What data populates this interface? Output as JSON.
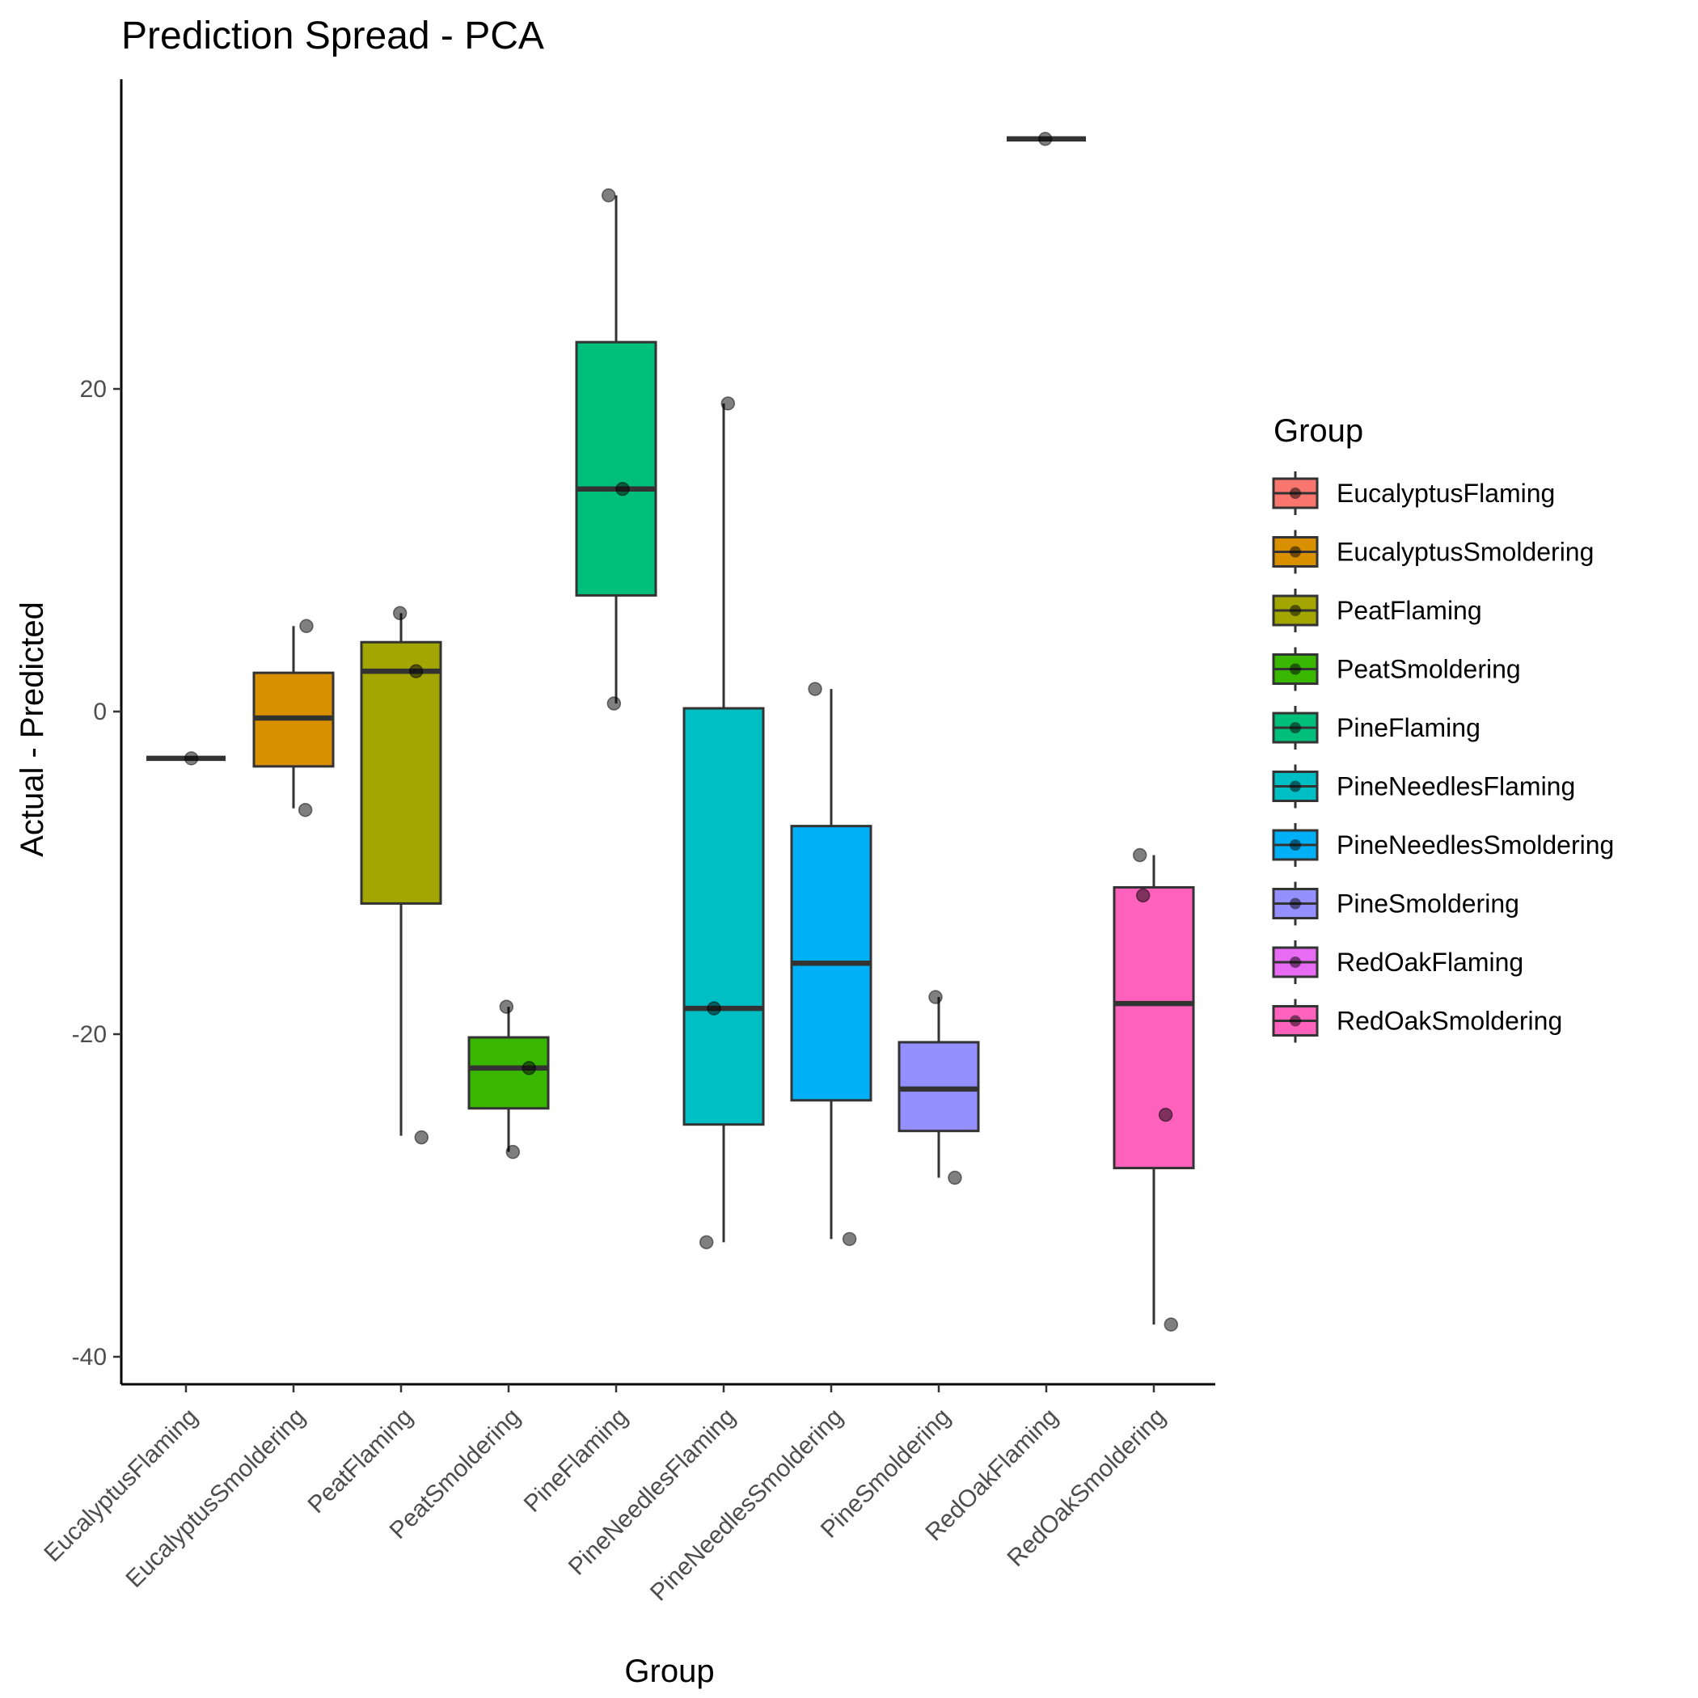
{
  "chart_data": {
    "type": "box",
    "title": "Prediction Spread - PCA",
    "xlabel": "Group",
    "ylabel": "Actual - Predicted",
    "ylim": [
      -41.5,
      39
    ],
    "y_ticks": [
      20,
      0,
      -20,
      -40
    ],
    "grid": false,
    "legend": {
      "title": "Group",
      "position": "right"
    },
    "categories": [
      "EucalyptusFlaming",
      "EucalyptusSmoldering",
      "PeatFlaming",
      "PeatSmoldering",
      "PineFlaming",
      "PineNeedlesFlaming",
      "PineNeedlesSmoldering",
      "PineSmoldering",
      "RedOakFlaming",
      "RedOakSmoldering"
    ],
    "colors": [
      "#F8766D",
      "#D89000",
      "#A3A500",
      "#39B600",
      "#00BF7D",
      "#00BFC4",
      "#00B0F6",
      "#9590FF",
      "#E76BF3",
      "#FF62BC"
    ],
    "boxes": [
      {
        "group": "EucalyptusFlaming",
        "q1": -2.9,
        "median": -2.9,
        "q3": -2.9,
        "whisker_low": -2.9,
        "whisker_high": -2.9
      },
      {
        "group": "EucalyptusSmoldering",
        "q1": -3.4,
        "median": -0.4,
        "q3": 2.4,
        "whisker_low": -6.0,
        "whisker_high": 5.3
      },
      {
        "group": "PeatFlaming",
        "q1": -11.9,
        "median": 2.5,
        "q3": 4.3,
        "whisker_low": -26.3,
        "whisker_high": 6.1
      },
      {
        "group": "PeatSmoldering",
        "q1": -24.6,
        "median": -22.1,
        "q3": -20.2,
        "whisker_low": -27.3,
        "whisker_high": -18.3
      },
      {
        "group": "PineFlaming",
        "q1": 7.2,
        "median": 13.8,
        "q3": 22.9,
        "whisker_low": 0.5,
        "whisker_high": 32.0
      },
      {
        "group": "PineNeedlesFlaming",
        "q1": -25.6,
        "median": -18.4,
        "q3": 0.2,
        "whisker_low": -32.9,
        "whisker_high": 19.1
      },
      {
        "group": "PineNeedlesSmoldering",
        "q1": -24.1,
        "median": -15.6,
        "q3": -7.1,
        "whisker_low": -32.7,
        "whisker_high": 1.4
      },
      {
        "group": "PineSmoldering",
        "q1": -26.0,
        "median": -23.4,
        "q3": -20.5,
        "whisker_low": -28.9,
        "whisker_high": -17.7
      },
      {
        "group": "RedOakFlaming",
        "q1": 35.5,
        "median": 35.5,
        "q3": 35.5,
        "whisker_low": 35.5,
        "whisker_high": 35.5
      },
      {
        "group": "RedOakSmoldering",
        "q1": -28.3,
        "median": -18.1,
        "q3": -10.9,
        "whisker_low": -38.0,
        "whisker_high": -8.9
      }
    ],
    "points": [
      {
        "group": "EucalyptusFlaming",
        "dx": 0.05,
        "y": -2.9
      },
      {
        "group": "EucalyptusSmoldering",
        "dx": 0.12,
        "y": 5.3
      },
      {
        "group": "EucalyptusSmoldering",
        "dx": 0.11,
        "y": -6.1
      },
      {
        "group": "PeatFlaming",
        "dx": -0.01,
        "y": 6.1
      },
      {
        "group": "PeatFlaming",
        "dx": 0.14,
        "y": 2.5
      },
      {
        "group": "PeatFlaming",
        "dx": 0.19,
        "y": -26.4
      },
      {
        "group": "PeatSmoldering",
        "dx": -0.02,
        "y": -18.3
      },
      {
        "group": "PeatSmoldering",
        "dx": 0.19,
        "y": -22.1
      },
      {
        "group": "PeatSmoldering",
        "dx": 0.04,
        "y": -27.3
      },
      {
        "group": "PineFlaming",
        "dx": -0.07,
        "y": 32.0
      },
      {
        "group": "PineFlaming",
        "dx": 0.06,
        "y": 13.8
      },
      {
        "group": "PineFlaming",
        "dx": -0.02,
        "y": 0.5
      },
      {
        "group": "PineNeedlesFlaming",
        "dx": 0.04,
        "y": 19.1
      },
      {
        "group": "PineNeedlesFlaming",
        "dx": -0.09,
        "y": -18.4
      },
      {
        "group": "PineNeedlesFlaming",
        "dx": -0.16,
        "y": -32.9
      },
      {
        "group": "PineNeedlesSmoldering",
        "dx": -0.15,
        "y": 1.4
      },
      {
        "group": "PineNeedlesSmoldering",
        "dx": 0.17,
        "y": -32.7
      },
      {
        "group": "PineSmoldering",
        "dx": -0.03,
        "y": -17.7
      },
      {
        "group": "PineSmoldering",
        "dx": 0.15,
        "y": -28.9
      },
      {
        "group": "RedOakFlaming",
        "dx": -0.01,
        "y": 35.5
      },
      {
        "group": "RedOakSmoldering",
        "dx": -0.13,
        "y": -8.9
      },
      {
        "group": "RedOakSmoldering",
        "dx": -0.1,
        "y": -11.4
      },
      {
        "group": "RedOakSmoldering",
        "dx": 0.11,
        "y": -25.0
      },
      {
        "group": "RedOakSmoldering",
        "dx": 0.16,
        "y": -38.0
      }
    ]
  }
}
